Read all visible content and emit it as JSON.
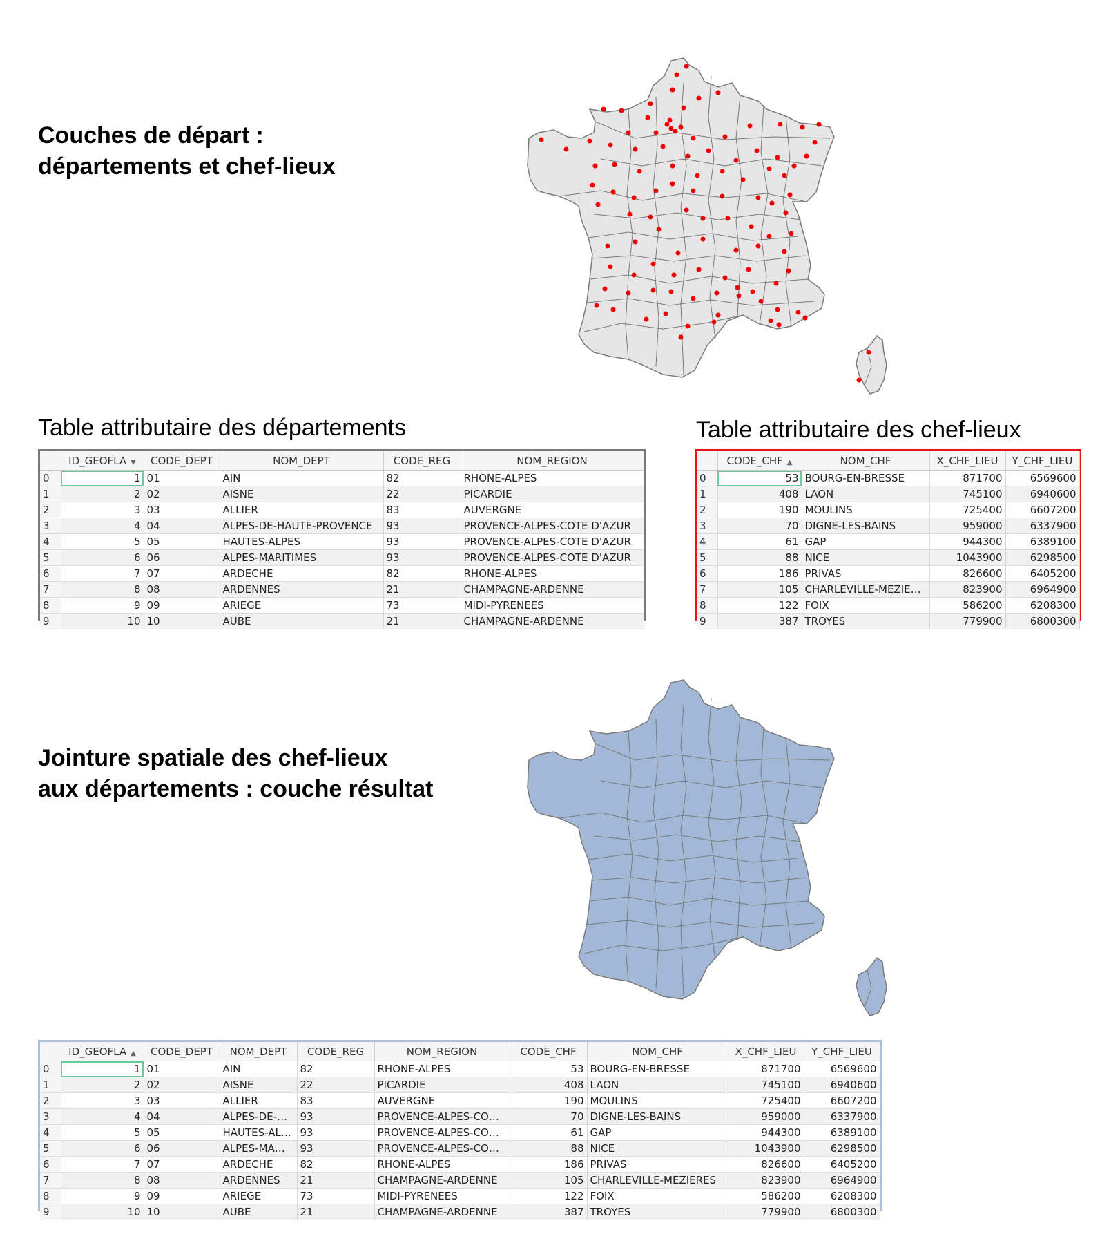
{
  "section1": {
    "heading": [
      "Couches de départ :",
      "départements et chef-lieux"
    ]
  },
  "section2": {
    "heading": [
      "Jointure spatiale des chef-lieux",
      "aux départements : couche résultat"
    ]
  },
  "captions": {
    "dept_table": "Table attributaire des départements",
    "chf_table": "Table attributaire des chef-lieux"
  },
  "colors": {
    "map1_fill": "#e6e6e6",
    "map2_fill": "#a3b8d6",
    "chef_lieu_point": "#ee0000",
    "dept_border": "#7a7a7a",
    "chf_table_border": "#ee1111",
    "result_table_border": "#a8c0dc",
    "selected_cell": "#66cc99"
  },
  "dept_table": {
    "columns": [
      "",
      "ID_GEOFLA",
      "CODE_DEPT",
      "NOM_DEPT",
      "CODE_REG",
      "NOM_REGION"
    ],
    "sort_col": 1,
    "sort_dir": "▼",
    "rows": [
      [
        "0",
        "1",
        "01",
        "AIN",
        "82",
        "RHONE-ALPES"
      ],
      [
        "1",
        "2",
        "02",
        "AISNE",
        "22",
        "PICARDIE"
      ],
      [
        "2",
        "3",
        "03",
        "ALLIER",
        "83",
        "AUVERGNE"
      ],
      [
        "3",
        "4",
        "04",
        "ALPES-DE-HAUTE-PROVENCE",
        "93",
        "PROVENCE-ALPES-COTE D'AZUR"
      ],
      [
        "4",
        "5",
        "05",
        "HAUTES-ALPES",
        "93",
        "PROVENCE-ALPES-COTE D'AZUR"
      ],
      [
        "5",
        "6",
        "06",
        "ALPES-MARITIMES",
        "93",
        "PROVENCE-ALPES-COTE D'AZUR"
      ],
      [
        "6",
        "7",
        "07",
        "ARDECHE",
        "82",
        "RHONE-ALPES"
      ],
      [
        "7",
        "8",
        "08",
        "ARDENNES",
        "21",
        "CHAMPAGNE-ARDENNE"
      ],
      [
        "8",
        "9",
        "09",
        "ARIEGE",
        "73",
        "MIDI-PYRENEES"
      ],
      [
        "9",
        "10",
        "10",
        "AUBE",
        "21",
        "CHAMPAGNE-ARDENNE"
      ]
    ]
  },
  "chf_table": {
    "columns": [
      "",
      "CODE_CHF",
      "NOM_CHF",
      "X_CHF_LIEU",
      "Y_CHF_LIEU"
    ],
    "sort_col": 1,
    "sort_dir": "▲",
    "rows": [
      [
        "0",
        "53",
        "BOURG-EN-BRESSE",
        "871700",
        "6569600"
      ],
      [
        "1",
        "408",
        "LAON",
        "745100",
        "6940600"
      ],
      [
        "2",
        "190",
        "MOULINS",
        "725400",
        "6607200"
      ],
      [
        "3",
        "70",
        "DIGNE-LES-BAINS",
        "959000",
        "6337900"
      ],
      [
        "4",
        "61",
        "GAP",
        "944300",
        "6389100"
      ],
      [
        "5",
        "88",
        "NICE",
        "1043900",
        "6298500"
      ],
      [
        "6",
        "186",
        "PRIVAS",
        "826600",
        "6405200"
      ],
      [
        "7",
        "105",
        "CHARLEVILLE-MEZIE…",
        "823900",
        "6964900"
      ],
      [
        "8",
        "122",
        "FOIX",
        "586200",
        "6208300"
      ],
      [
        "9",
        "387",
        "TROYES",
        "779900",
        "6800300"
      ]
    ]
  },
  "result_table": {
    "columns": [
      "",
      "ID_GEOFLA",
      "CODE_DEPT",
      "NOM_DEPT",
      "CODE_REG",
      "NOM_REGION",
      "CODE_CHF",
      "NOM_CHF",
      "X_CHF_LIEU",
      "Y_CHF_LIEU"
    ],
    "sort_col": 1,
    "sort_dir": "▲",
    "rows": [
      [
        "0",
        "1",
        "01",
        "AIN",
        "82",
        "RHONE-ALPES",
        "53",
        "BOURG-EN-BRESSE",
        "871700",
        "6569600"
      ],
      [
        "1",
        "2",
        "02",
        "AISNE",
        "22",
        "PICARDIE",
        "408",
        "LAON",
        "745100",
        "6940600"
      ],
      [
        "2",
        "3",
        "03",
        "ALLIER",
        "83",
        "AUVERGNE",
        "190",
        "MOULINS",
        "725400",
        "6607200"
      ],
      [
        "3",
        "4",
        "04",
        "ALPES-DE-…",
        "93",
        "PROVENCE-ALPES-CO…",
        "70",
        "DIGNE-LES-BAINS",
        "959000",
        "6337900"
      ],
      [
        "4",
        "5",
        "05",
        "HAUTES-AL…",
        "93",
        "PROVENCE-ALPES-CO…",
        "61",
        "GAP",
        "944300",
        "6389100"
      ],
      [
        "5",
        "6",
        "06",
        "ALPES-MA…",
        "93",
        "PROVENCE-ALPES-CO…",
        "88",
        "NICE",
        "1043900",
        "6298500"
      ],
      [
        "6",
        "7",
        "07",
        "ARDECHE",
        "82",
        "RHONE-ALPES",
        "186",
        "PRIVAS",
        "826600",
        "6405200"
      ],
      [
        "7",
        "8",
        "08",
        "ARDENNES",
        "21",
        "CHAMPAGNE-ARDENNE",
        "105",
        "CHARLEVILLE-MEZIERES",
        "823900",
        "6964900"
      ],
      [
        "8",
        "9",
        "09",
        "ARIEGE",
        "73",
        "MIDI-PYRENEES",
        "122",
        "FOIX",
        "586200",
        "6208300"
      ],
      [
        "9",
        "10",
        "10",
        "AUBE",
        "21",
        "CHAMPAGNE-ARDENNE",
        "387",
        "TROYES",
        "779900",
        "6800300"
      ]
    ]
  }
}
